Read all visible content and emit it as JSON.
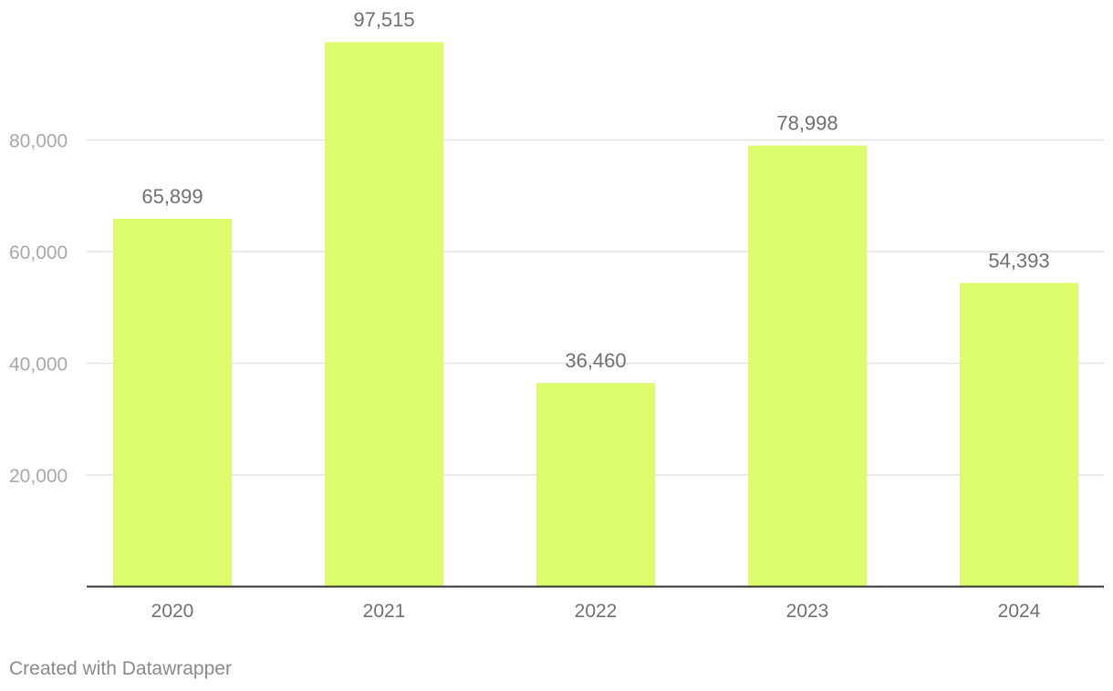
{
  "chart_data": {
    "type": "bar",
    "title": "",
    "xlabel": "",
    "ylabel": "",
    "categories": [
      "2020",
      "2021",
      "2022",
      "2023",
      "2024"
    ],
    "values": [
      65899,
      97515,
      36460,
      78998,
      54393
    ],
    "value_labels": [
      "65,899",
      "97,515",
      "36,460",
      "78,998",
      "54,393"
    ],
    "ylim": [
      0,
      100000
    ],
    "y_ticks": [
      20000,
      40000,
      60000,
      80000
    ],
    "y_tick_labels": [
      "20,000",
      "40,000",
      "60,000",
      "80,000"
    ],
    "grid": true,
    "legend": "none",
    "colors": {
      "bar": "#dcfc6d",
      "grid": "#e3e3e3",
      "baseline": "#333333",
      "tick_text": "#a8a8a8",
      "category_text": "#707070",
      "value_label_text": "#707070"
    }
  },
  "footer": {
    "credit": "Created with Datawrapper"
  }
}
